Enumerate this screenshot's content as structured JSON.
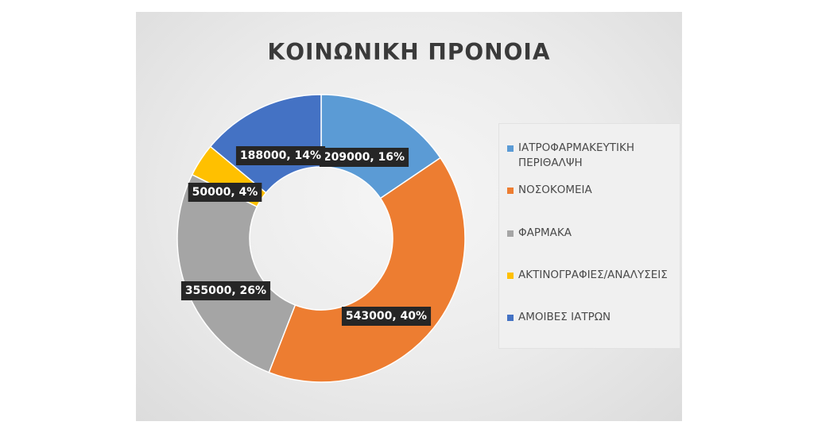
{
  "chart_data": {
    "type": "pie",
    "title": "ΚΟΙΝΩΝΙΚΗ ΠΡΟΝΟΙΑ",
    "categories": [
      "ΙΑΤΡΟΦΑΡΜΑΚΕΥΤΙΚΗ ΠΕΡΙΘΑΛΨΗ",
      "ΝΟΣΟΚΟΜΕΙΑ",
      "ΦΑΡΜΑΚΑ",
      "ΑΚΤΙΝΟΓΡΑΦΙΕΣ/ΑΝΑΛΥΣΕΙΣ",
      "ΑΜΟΙΒΕΣ ΙΑΤΡΩΝ"
    ],
    "values": [
      209000,
      543000,
      355000,
      50000,
      188000
    ],
    "data_labels": [
      "209000, 16%",
      "543000, 40%",
      "355000, 26%",
      "50000, 4%",
      "188000, 14%"
    ],
    "colors": [
      "#5b9bd5",
      "#ed7d31",
      "#a5a5a5",
      "#ffc000",
      "#4472c4"
    ],
    "donut": true,
    "legend_position": "right"
  }
}
